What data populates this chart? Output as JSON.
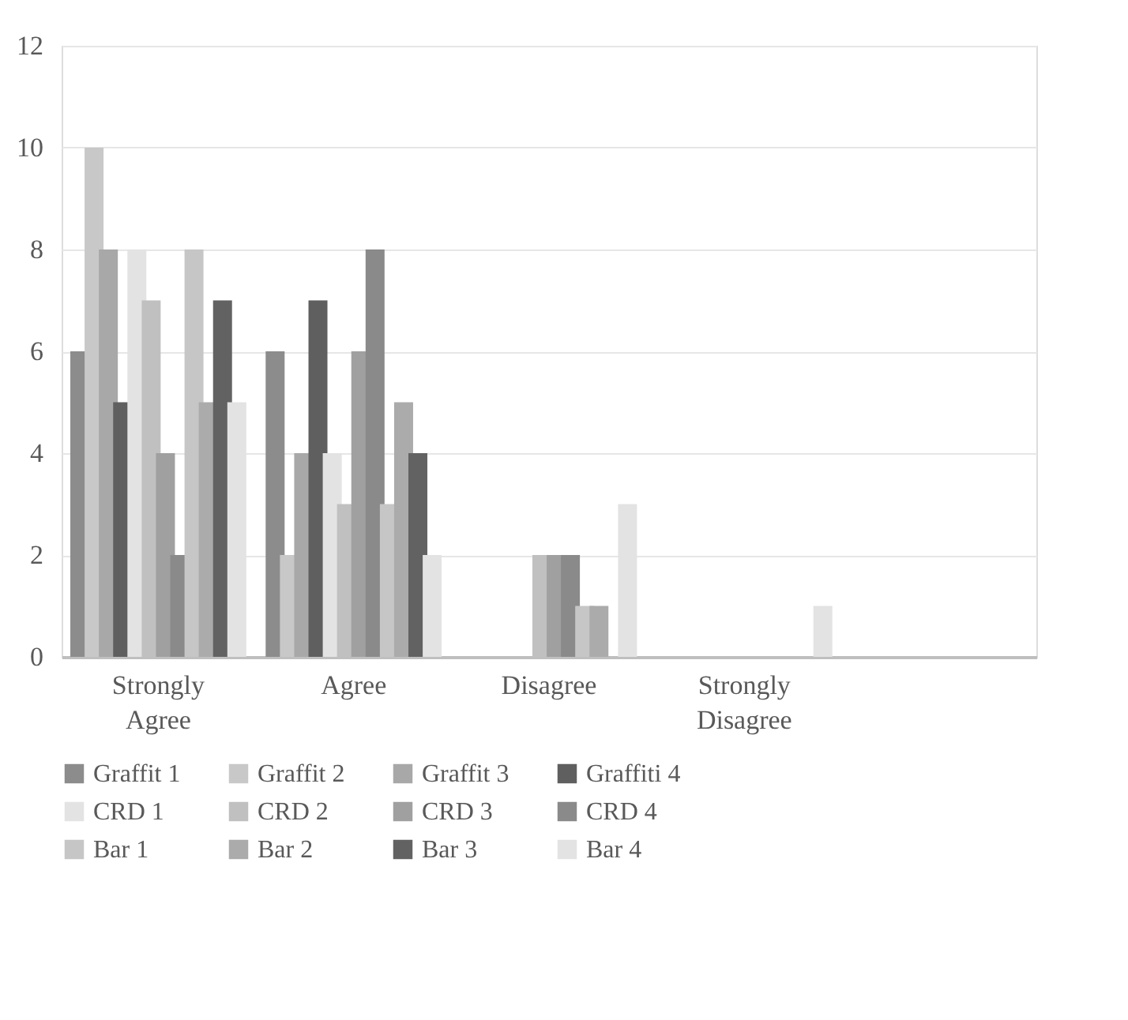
{
  "chart_data": {
    "type": "bar",
    "categories": [
      "Strongly Agree",
      "Agree",
      "Disagree",
      "Strongly Disagree",
      null
    ],
    "series": [
      {
        "name": "Graffit 1",
        "color": "#8c8c8c",
        "values": [
          6,
          6,
          0,
          0,
          null
        ]
      },
      {
        "name": "Graffit 2",
        "color": "#c8c8c8",
        "values": [
          10,
          2,
          0,
          0,
          null
        ]
      },
      {
        "name": "Graffit 3",
        "color": "#a8a8a8",
        "values": [
          8,
          4,
          0,
          0,
          null
        ]
      },
      {
        "name": "Graffiti 4",
        "color": "#5f5f5f",
        "values": [
          5,
          7,
          0,
          0,
          null
        ]
      },
      {
        "name": "CRD 1",
        "color": "#e3e3e3",
        "values": [
          8,
          4,
          0,
          0,
          null
        ]
      },
      {
        "name": "CRD 2",
        "color": "#c0c0c0",
        "values": [
          7,
          3,
          2,
          0,
          null
        ]
      },
      {
        "name": "CRD 3",
        "color": "#a0a0a0",
        "values": [
          4,
          6,
          2,
          0,
          null
        ]
      },
      {
        "name": "CRD 4",
        "color": "#8a8a8a",
        "values": [
          2,
          8,
          2,
          0,
          null
        ]
      },
      {
        "name": "Bar 1",
        "color": "#c6c6c6",
        "values": [
          8,
          3,
          1,
          0,
          null
        ]
      },
      {
        "name": "Bar 2",
        "color": "#ababab",
        "values": [
          5,
          5,
          1,
          0,
          null
        ]
      },
      {
        "name": "Bar 3",
        "color": "#626262",
        "values": [
          7,
          4,
          0,
          0,
          null
        ]
      },
      {
        "name": "Bar 4",
        "color": "#e3e3e3",
        "values": [
          5,
          2,
          3,
          1,
          null
        ]
      }
    ],
    "ylim": [
      0,
      12
    ],
    "yticks": [
      0,
      2,
      4,
      6,
      8,
      10,
      12
    ],
    "grid": "y",
    "legend": "bottom"
  }
}
